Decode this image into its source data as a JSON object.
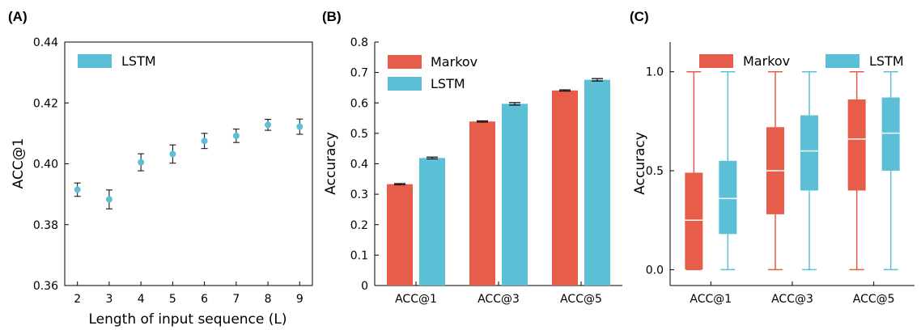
{
  "colors": {
    "markov": "#E85C4A",
    "lstm": "#5BC0D6",
    "median": "#ffffff",
    "axis": "#000000"
  },
  "chart_data": [
    {
      "panel_label": "(A)",
      "type": "scatter",
      "xlabel": "Length of input sequence (L)",
      "ylabel": "ACC@1",
      "ylim": [
        0.36,
        0.44
      ],
      "yticks": [
        "0.36",
        "0.38",
        "0.40",
        "0.42",
        "0.44"
      ],
      "ytick_values": [
        0.36,
        0.38,
        0.4,
        0.42,
        0.44
      ],
      "xlim": [
        1.6,
        9.4
      ],
      "xticks": [
        "2",
        "3",
        "4",
        "5",
        "6",
        "7",
        "8",
        "9"
      ],
      "xtick_values": [
        2,
        3,
        4,
        5,
        6,
        7,
        8,
        9
      ],
      "legend": [
        "LSTM"
      ],
      "legend_position": "top-left",
      "series": [
        {
          "name": "LSTM",
          "x": [
            2,
            3,
            4,
            5,
            6,
            7,
            8,
            9
          ],
          "y": [
            0.3915,
            0.3883,
            0.4005,
            0.4032,
            0.4075,
            0.4092,
            0.4128,
            0.4122
          ],
          "err": [
            0.0022,
            0.0031,
            0.0028,
            0.003,
            0.0025,
            0.0022,
            0.0018,
            0.0025
          ]
        }
      ]
    },
    {
      "panel_label": "(B)",
      "type": "bar",
      "xlabel": "",
      "ylabel": "Accuracy",
      "ylim": [
        0,
        0.8
      ],
      "yticks": [
        "0",
        "0.1",
        "0.2",
        "0.3",
        "0.4",
        "0.5",
        "0.6",
        "0.7",
        "0.8"
      ],
      "ytick_values": [
        0,
        0.1,
        0.2,
        0.3,
        0.4,
        0.5,
        0.6,
        0.7,
        0.8
      ],
      "categories": [
        "ACC@1",
        "ACC@3",
        "ACC@5"
      ],
      "legend": [
        "Markov",
        "LSTM"
      ],
      "legend_position": "top-left",
      "series": [
        {
          "name": "Markov",
          "values": [
            0.333,
            0.539,
            0.641
          ],
          "err": [
            0.002,
            0.002,
            0.002
          ]
        },
        {
          "name": "LSTM",
          "values": [
            0.419,
            0.597,
            0.676
          ],
          "err": [
            0.003,
            0.004,
            0.004
          ]
        }
      ]
    },
    {
      "panel_label": "(C)",
      "type": "box",
      "xlabel": "",
      "ylabel": "Accuracy",
      "ylim": [
        -0.08,
        1.15
      ],
      "yticks": [
        "0.0",
        "0.5",
        "1.0"
      ],
      "ytick_values": [
        0,
        0.5,
        1.0
      ],
      "categories": [
        "ACC@1",
        "ACC@3",
        "ACC@5"
      ],
      "legend": [
        "Markov",
        "LSTM"
      ],
      "legend_position": "top",
      "series": [
        {
          "name": "Markov",
          "boxes": [
            {
              "min": 0,
              "q1": 0.0,
              "median": 0.25,
              "q3": 0.49,
              "max": 1.0
            },
            {
              "min": 0,
              "q1": 0.28,
              "median": 0.5,
              "q3": 0.72,
              "max": 1.0
            },
            {
              "min": 0,
              "q1": 0.4,
              "median": 0.66,
              "q3": 0.86,
              "max": 1.0
            }
          ]
        },
        {
          "name": "LSTM",
          "boxes": [
            {
              "min": 0,
              "q1": 0.18,
              "median": 0.36,
              "q3": 0.55,
              "max": 1.0
            },
            {
              "min": 0,
              "q1": 0.4,
              "median": 0.6,
              "q3": 0.78,
              "max": 1.0
            },
            {
              "min": 0,
              "q1": 0.5,
              "median": 0.69,
              "q3": 0.87,
              "max": 1.0
            }
          ]
        }
      ]
    }
  ]
}
